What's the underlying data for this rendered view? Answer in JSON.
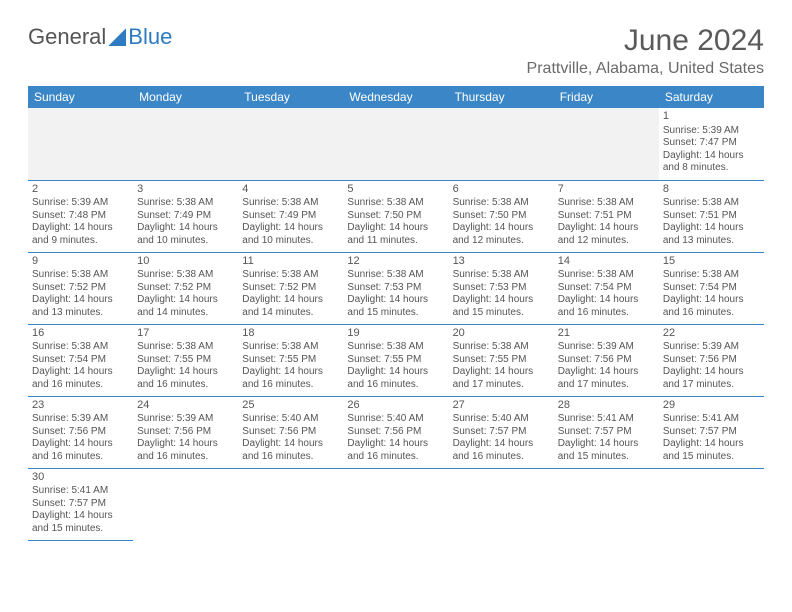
{
  "logo": {
    "part1": "General",
    "part2": "Blue"
  },
  "title": "June 2024",
  "location": "Prattville, Alabama, United States",
  "colors": {
    "header_bg": "#3b86c6",
    "header_text": "#ffffff",
    "rule": "#3b86c6",
    "text": "#555555",
    "blank_bg": "#f2f2f2"
  },
  "day_headers": [
    "Sunday",
    "Monday",
    "Tuesday",
    "Wednesday",
    "Thursday",
    "Friday",
    "Saturday"
  ],
  "weeks": [
    [
      null,
      null,
      null,
      null,
      null,
      null,
      {
        "n": "1",
        "sr": "Sunrise: 5:39 AM",
        "ss": "Sunset: 7:47 PM",
        "dl": "Daylight: 14 hours and 8 minutes."
      }
    ],
    [
      {
        "n": "2",
        "sr": "Sunrise: 5:39 AM",
        "ss": "Sunset: 7:48 PM",
        "dl": "Daylight: 14 hours and 9 minutes."
      },
      {
        "n": "3",
        "sr": "Sunrise: 5:38 AM",
        "ss": "Sunset: 7:49 PM",
        "dl": "Daylight: 14 hours and 10 minutes."
      },
      {
        "n": "4",
        "sr": "Sunrise: 5:38 AM",
        "ss": "Sunset: 7:49 PM",
        "dl": "Daylight: 14 hours and 10 minutes."
      },
      {
        "n": "5",
        "sr": "Sunrise: 5:38 AM",
        "ss": "Sunset: 7:50 PM",
        "dl": "Daylight: 14 hours and 11 minutes."
      },
      {
        "n": "6",
        "sr": "Sunrise: 5:38 AM",
        "ss": "Sunset: 7:50 PM",
        "dl": "Daylight: 14 hours and 12 minutes."
      },
      {
        "n": "7",
        "sr": "Sunrise: 5:38 AM",
        "ss": "Sunset: 7:51 PM",
        "dl": "Daylight: 14 hours and 12 minutes."
      },
      {
        "n": "8",
        "sr": "Sunrise: 5:38 AM",
        "ss": "Sunset: 7:51 PM",
        "dl": "Daylight: 14 hours and 13 minutes."
      }
    ],
    [
      {
        "n": "9",
        "sr": "Sunrise: 5:38 AM",
        "ss": "Sunset: 7:52 PM",
        "dl": "Daylight: 14 hours and 13 minutes."
      },
      {
        "n": "10",
        "sr": "Sunrise: 5:38 AM",
        "ss": "Sunset: 7:52 PM",
        "dl": "Daylight: 14 hours and 14 minutes."
      },
      {
        "n": "11",
        "sr": "Sunrise: 5:38 AM",
        "ss": "Sunset: 7:52 PM",
        "dl": "Daylight: 14 hours and 14 minutes."
      },
      {
        "n": "12",
        "sr": "Sunrise: 5:38 AM",
        "ss": "Sunset: 7:53 PM",
        "dl": "Daylight: 14 hours and 15 minutes."
      },
      {
        "n": "13",
        "sr": "Sunrise: 5:38 AM",
        "ss": "Sunset: 7:53 PM",
        "dl": "Daylight: 14 hours and 15 minutes."
      },
      {
        "n": "14",
        "sr": "Sunrise: 5:38 AM",
        "ss": "Sunset: 7:54 PM",
        "dl": "Daylight: 14 hours and 16 minutes."
      },
      {
        "n": "15",
        "sr": "Sunrise: 5:38 AM",
        "ss": "Sunset: 7:54 PM",
        "dl": "Daylight: 14 hours and 16 minutes."
      }
    ],
    [
      {
        "n": "16",
        "sr": "Sunrise: 5:38 AM",
        "ss": "Sunset: 7:54 PM",
        "dl": "Daylight: 14 hours and 16 minutes."
      },
      {
        "n": "17",
        "sr": "Sunrise: 5:38 AM",
        "ss": "Sunset: 7:55 PM",
        "dl": "Daylight: 14 hours and 16 minutes."
      },
      {
        "n": "18",
        "sr": "Sunrise: 5:38 AM",
        "ss": "Sunset: 7:55 PM",
        "dl": "Daylight: 14 hours and 16 minutes."
      },
      {
        "n": "19",
        "sr": "Sunrise: 5:38 AM",
        "ss": "Sunset: 7:55 PM",
        "dl": "Daylight: 14 hours and 16 minutes."
      },
      {
        "n": "20",
        "sr": "Sunrise: 5:38 AM",
        "ss": "Sunset: 7:55 PM",
        "dl": "Daylight: 14 hours and 17 minutes."
      },
      {
        "n": "21",
        "sr": "Sunrise: 5:39 AM",
        "ss": "Sunset: 7:56 PM",
        "dl": "Daylight: 14 hours and 17 minutes."
      },
      {
        "n": "22",
        "sr": "Sunrise: 5:39 AM",
        "ss": "Sunset: 7:56 PM",
        "dl": "Daylight: 14 hours and 17 minutes."
      }
    ],
    [
      {
        "n": "23",
        "sr": "Sunrise: 5:39 AM",
        "ss": "Sunset: 7:56 PM",
        "dl": "Daylight: 14 hours and 16 minutes."
      },
      {
        "n": "24",
        "sr": "Sunrise: 5:39 AM",
        "ss": "Sunset: 7:56 PM",
        "dl": "Daylight: 14 hours and 16 minutes."
      },
      {
        "n": "25",
        "sr": "Sunrise: 5:40 AM",
        "ss": "Sunset: 7:56 PM",
        "dl": "Daylight: 14 hours and 16 minutes."
      },
      {
        "n": "26",
        "sr": "Sunrise: 5:40 AM",
        "ss": "Sunset: 7:56 PM",
        "dl": "Daylight: 14 hours and 16 minutes."
      },
      {
        "n": "27",
        "sr": "Sunrise: 5:40 AM",
        "ss": "Sunset: 7:57 PM",
        "dl": "Daylight: 14 hours and 16 minutes."
      },
      {
        "n": "28",
        "sr": "Sunrise: 5:41 AM",
        "ss": "Sunset: 7:57 PM",
        "dl": "Daylight: 14 hours and 15 minutes."
      },
      {
        "n": "29",
        "sr": "Sunrise: 5:41 AM",
        "ss": "Sunset: 7:57 PM",
        "dl": "Daylight: 14 hours and 15 minutes."
      }
    ],
    [
      {
        "n": "30",
        "sr": "Sunrise: 5:41 AM",
        "ss": "Sunset: 7:57 PM",
        "dl": "Daylight: 14 hours and 15 minutes."
      },
      null,
      null,
      null,
      null,
      null,
      null
    ]
  ]
}
